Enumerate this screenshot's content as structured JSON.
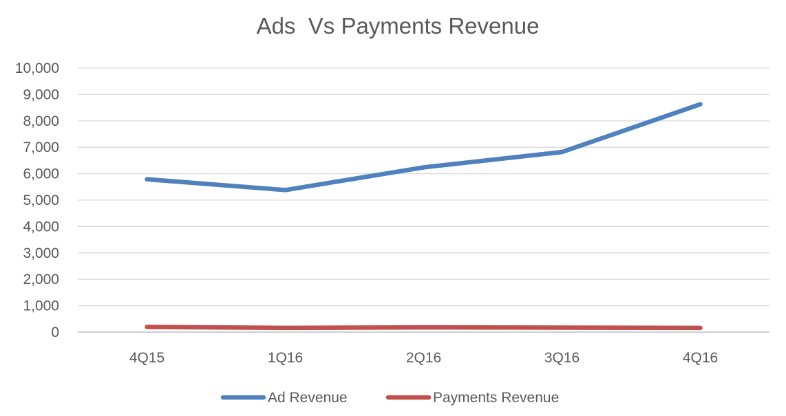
{
  "chart_data": {
    "type": "line",
    "title": "Ads  Vs Payments Revenue",
    "xlabel": "",
    "ylabel": "",
    "categories": [
      "4Q15",
      "1Q16",
      "2Q16",
      "3Q16",
      "4Q16"
    ],
    "ylim": [
      0,
      10000
    ],
    "yticks": [
      0,
      1000,
      2000,
      3000,
      4000,
      5000,
      6000,
      7000,
      8000,
      9000,
      10000
    ],
    "ytick_labels": [
      "0",
      "1,000",
      "2,000",
      "3,000",
      "4,000",
      "5,000",
      "6,000",
      "7,000",
      "8,000",
      "9,000",
      "10,000"
    ],
    "grid": true,
    "legend_position": "bottom",
    "series": [
      {
        "name": "Ad Revenue",
        "color": "#4f81bd",
        "values": [
          5790,
          5380,
          6240,
          6820,
          8630
        ]
      },
      {
        "name": "Payments Revenue",
        "color": "#c0504d",
        "values": [
          195,
          160,
          180,
          170,
          160
        ]
      }
    ]
  }
}
